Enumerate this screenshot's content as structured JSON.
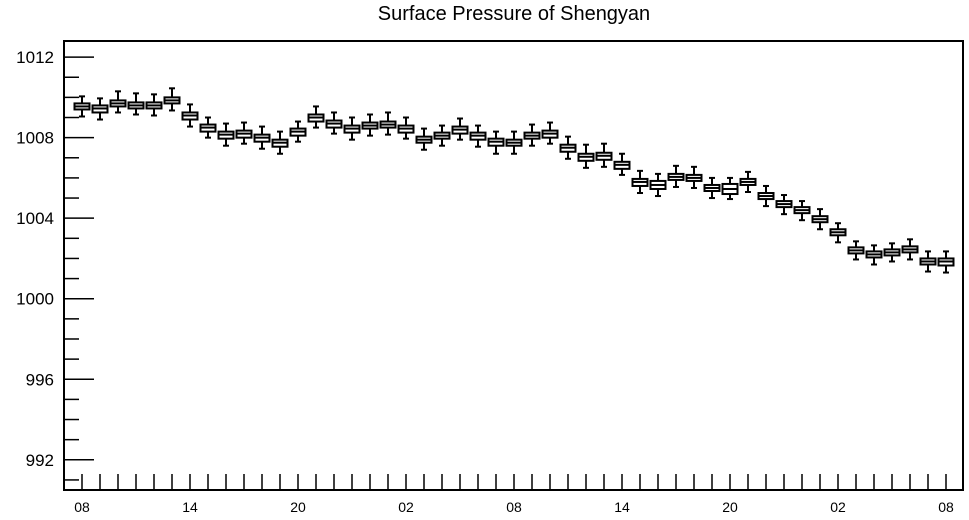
{
  "chart_data": {
    "type": "boxplot",
    "title": "Surface Pressure of Shengyan",
    "xlabel": "",
    "ylabel": "",
    "ylim": [
      990.5,
      1012.8
    ],
    "y_ticks": [
      992,
      996,
      1000,
      1004,
      1008,
      1012
    ],
    "y_tick_labels": [
      "992",
      "996",
      "1000",
      "1004",
      "1008",
      "1012"
    ],
    "x_tick_labels": [
      "08",
      "14",
      "20",
      "02",
      "08",
      "14",
      "20",
      "02",
      "08"
    ],
    "x_tick_label_positions": [
      0,
      6,
      12,
      18,
      24,
      30,
      36,
      42,
      48
    ],
    "grid": false,
    "legend": "none",
    "series": [
      {
        "medians": [
          1009.55,
          1009.45,
          1009.7,
          1009.6,
          1009.6,
          1009.85,
          1009.1,
          1008.5,
          1008.15,
          1008.2,
          1008.0,
          1007.75,
          1008.3,
          1009.0,
          1008.7,
          1008.45,
          1008.6,
          1008.65,
          1008.45,
          1007.9,
          1008.1,
          1008.4,
          1008.1,
          1007.8,
          1007.75,
          1008.1,
          1008.2,
          1007.5,
          1007.05,
          1007.1,
          1006.65,
          1005.8,
          1005.65,
          1006.05,
          1006.0,
          1005.5,
          1005.45,
          1005.8,
          1005.1,
          1004.7,
          1004.4,
          1003.95,
          1003.3,
          1002.4,
          1002.2,
          1002.3,
          1002.45,
          1001.85,
          1001.85
        ],
        "q1": [
          1009.4,
          1009.25,
          1009.55,
          1009.45,
          1009.45,
          1009.7,
          1008.9,
          1008.3,
          1007.95,
          1008.0,
          1007.8,
          1007.55,
          1008.1,
          1008.8,
          1008.5,
          1008.25,
          1008.45,
          1008.5,
          1008.25,
          1007.75,
          1007.95,
          1008.2,
          1007.9,
          1007.6,
          1007.6,
          1007.95,
          1008.0,
          1007.3,
          1006.85,
          1006.9,
          1006.45,
          1005.6,
          1005.45,
          1005.9,
          1005.85,
          1005.35,
          1005.2,
          1005.65,
          1004.95,
          1004.55,
          1004.25,
          1003.8,
          1003.15,
          1002.25,
          1002.05,
          1002.15,
          1002.3,
          1001.7,
          1001.65
        ],
        "q3": [
          1009.7,
          1009.6,
          1009.85,
          1009.75,
          1009.75,
          1010.0,
          1009.25,
          1008.65,
          1008.3,
          1008.35,
          1008.15,
          1007.9,
          1008.45,
          1009.15,
          1008.85,
          1008.6,
          1008.75,
          1008.8,
          1008.6,
          1008.05,
          1008.25,
          1008.55,
          1008.25,
          1007.95,
          1007.9,
          1008.25,
          1008.35,
          1007.65,
          1007.2,
          1007.25,
          1006.8,
          1005.95,
          1005.85,
          1006.2,
          1006.15,
          1005.65,
          1005.7,
          1005.95,
          1005.25,
          1004.85,
          1004.55,
          1004.1,
          1003.45,
          1002.55,
          1002.35,
          1002.45,
          1002.6,
          1002.0,
          1002.0
        ],
        "whisker_low": [
          1009.05,
          1008.9,
          1009.25,
          1009.15,
          1009.1,
          1009.35,
          1008.55,
          1008.0,
          1007.6,
          1007.7,
          1007.45,
          1007.2,
          1007.8,
          1008.5,
          1008.2,
          1007.9,
          1008.1,
          1008.15,
          1007.95,
          1007.4,
          1007.6,
          1007.9,
          1007.55,
          1007.2,
          1007.2,
          1007.6,
          1007.7,
          1006.95,
          1006.5,
          1006.55,
          1006.15,
          1005.25,
          1005.1,
          1005.55,
          1005.5,
          1005.0,
          1004.95,
          1005.3,
          1004.6,
          1004.2,
          1003.9,
          1003.45,
          1002.8,
          1001.95,
          1001.7,
          1001.85,
          1001.95,
          1001.35,
          1001.3
        ],
        "whisker_high": [
          1010.05,
          1009.95,
          1010.3,
          1010.2,
          1010.15,
          1010.45,
          1009.65,
          1009.0,
          1008.7,
          1008.75,
          1008.55,
          1008.3,
          1008.8,
          1009.55,
          1009.25,
          1009.0,
          1009.15,
          1009.25,
          1009.0,
          1008.45,
          1008.6,
          1008.95,
          1008.6,
          1008.3,
          1008.3,
          1008.65,
          1008.75,
          1008.05,
          1007.65,
          1007.7,
          1007.2,
          1006.35,
          1006.2,
          1006.6,
          1006.55,
          1006.0,
          1006.0,
          1006.3,
          1005.6,
          1005.15,
          1004.85,
          1004.45,
          1003.75,
          1002.85,
          1002.65,
          1002.75,
          1002.95,
          1002.35,
          1002.35
        ]
      }
    ]
  }
}
